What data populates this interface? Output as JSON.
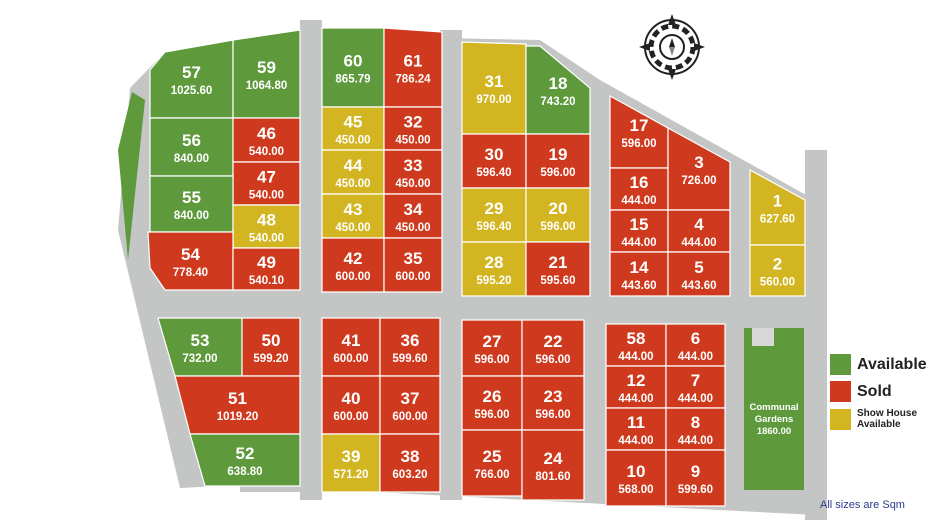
{
  "colors": {
    "available": "#5e9a3c",
    "sold": "#cf3a1e",
    "show_house": "#d2b521",
    "road": "#c4c6c6",
    "communal": "#5e9a3c"
  },
  "plots": [
    {
      "num": "57",
      "size": "1025.60",
      "status": "available"
    },
    {
      "num": "59",
      "size": "1064.80",
      "status": "available"
    },
    {
      "num": "56",
      "size": "840.00",
      "status": "available"
    },
    {
      "num": "46",
      "size": "540.00",
      "status": "sold"
    },
    {
      "num": "47",
      "size": "540.00",
      "status": "sold"
    },
    {
      "num": "55",
      "size": "840.00",
      "status": "available"
    },
    {
      "num": "48",
      "size": "540.00",
      "status": "show_house"
    },
    {
      "num": "54",
      "size": "778.40",
      "status": "sold"
    },
    {
      "num": "49",
      "size": "540.10",
      "status": "sold"
    },
    {
      "num": "60",
      "size": "865.79",
      "status": "available"
    },
    {
      "num": "61",
      "size": "786.24",
      "status": "sold"
    },
    {
      "num": "45",
      "size": "450.00",
      "status": "show_house"
    },
    {
      "num": "32",
      "size": "450.00",
      "status": "sold"
    },
    {
      "num": "44",
      "size": "450.00",
      "status": "show_house"
    },
    {
      "num": "33",
      "size": "450.00",
      "status": "sold"
    },
    {
      "num": "43",
      "size": "450.00",
      "status": "show_house"
    },
    {
      "num": "34",
      "size": "450.00",
      "status": "sold"
    },
    {
      "num": "42",
      "size": "600.00",
      "status": "sold"
    },
    {
      "num": "35",
      "size": "600.00",
      "status": "sold"
    },
    {
      "num": "31",
      "size": "970.00",
      "status": "show_house"
    },
    {
      "num": "18",
      "size": "743.20",
      "status": "available"
    },
    {
      "num": "30",
      "size": "596.40",
      "status": "sold"
    },
    {
      "num": "19",
      "size": "596.00",
      "status": "sold"
    },
    {
      "num": "29",
      "size": "596.40",
      "status": "show_house"
    },
    {
      "num": "20",
      "size": "596.00",
      "status": "show_house"
    },
    {
      "num": "28",
      "size": "595.20",
      "status": "show_house"
    },
    {
      "num": "21",
      "size": "595.60",
      "status": "sold"
    },
    {
      "num": "17",
      "size": "596.00",
      "status": "sold"
    },
    {
      "num": "16",
      "size": "444.00",
      "status": "sold"
    },
    {
      "num": "3",
      "size": "726.00",
      "status": "sold"
    },
    {
      "num": "15",
      "size": "444.00",
      "status": "sold"
    },
    {
      "num": "4",
      "size": "444.00",
      "status": "sold"
    },
    {
      "num": "14",
      "size": "443.60",
      "status": "sold"
    },
    {
      "num": "5",
      "size": "443.60",
      "status": "sold"
    },
    {
      "num": "1",
      "size": "627.60",
      "status": "show_house"
    },
    {
      "num": "2",
      "size": "560.00",
      "status": "show_house"
    },
    {
      "num": "53",
      "size": "732.00",
      "status": "available"
    },
    {
      "num": "50",
      "size": "599.20",
      "status": "sold"
    },
    {
      "num": "51",
      "size": "1019.20",
      "status": "sold"
    },
    {
      "num": "52",
      "size": "638.80",
      "status": "available"
    },
    {
      "num": "41",
      "size": "600.00",
      "status": "sold"
    },
    {
      "num": "36",
      "size": "599.60",
      "status": "sold"
    },
    {
      "num": "40",
      "size": "600.00",
      "status": "sold"
    },
    {
      "num": "37",
      "size": "600.00",
      "status": "sold"
    },
    {
      "num": "39",
      "size": "571.20",
      "status": "show_house"
    },
    {
      "num": "38",
      "size": "603.20",
      "status": "sold"
    },
    {
      "num": "27",
      "size": "596.00",
      "status": "sold"
    },
    {
      "num": "22",
      "size": "596.00",
      "status": "sold"
    },
    {
      "num": "26",
      "size": "596.00",
      "status": "sold"
    },
    {
      "num": "23",
      "size": "596.00",
      "status": "sold"
    },
    {
      "num": "25",
      "size": "766.00",
      "status": "sold"
    },
    {
      "num": "24",
      "size": "801.60",
      "status": "sold"
    },
    {
      "num": "58",
      "size": "444.00",
      "status": "sold"
    },
    {
      "num": "6",
      "size": "444.00",
      "status": "sold"
    },
    {
      "num": "12",
      "size": "444.00",
      "status": "sold"
    },
    {
      "num": "7",
      "size": "444.00",
      "status": "sold"
    },
    {
      "num": "11",
      "size": "444.00",
      "status": "sold"
    },
    {
      "num": "8",
      "size": "444.00",
      "status": "sold"
    },
    {
      "num": "10",
      "size": "568.00",
      "status": "sold"
    },
    {
      "num": "9",
      "size": "599.60",
      "status": "sold"
    }
  ],
  "communal": {
    "line1": "Communal",
    "line2": "Gardens",
    "size": "1860.00"
  },
  "legend": {
    "available": "Available",
    "sold": "Sold",
    "show_house_line1": "Show House",
    "show_house_line2": "Available"
  },
  "units_note": "All sizes are Sqm",
  "compass_icon": "compass-rose-icon"
}
